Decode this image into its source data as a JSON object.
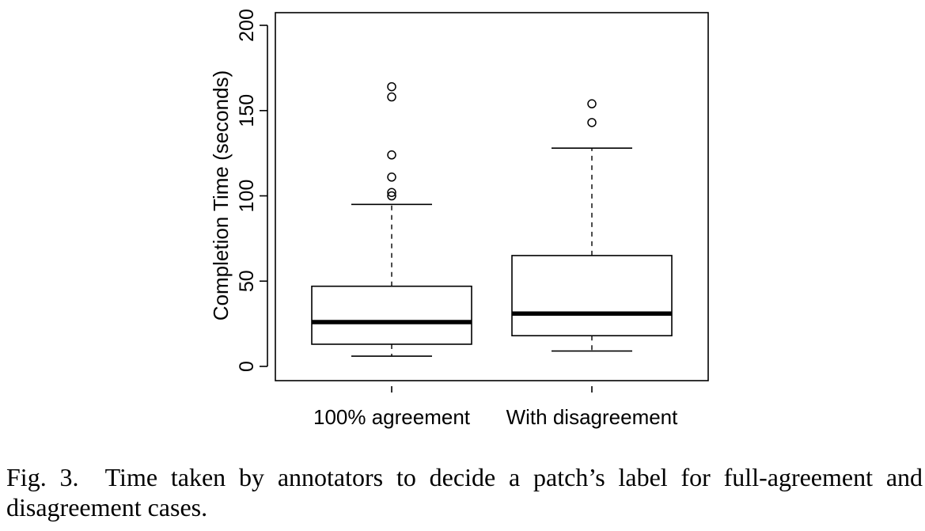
{
  "chart_data": {
    "type": "box",
    "ylabel": "Completion Time (seconds)",
    "xlabel": "",
    "ylim": [
      0,
      200
    ],
    "yticks": [
      0,
      50,
      100,
      150,
      200
    ],
    "categories": [
      "100% agreement",
      "With disagreement"
    ],
    "boxes": [
      {
        "label": "100% agreement",
        "whisker_low": 6,
        "q1": 13,
        "median": 26,
        "q3": 47,
        "whisker_high": 95,
        "outliers": [
          100,
          102,
          111,
          124,
          158,
          164
        ]
      },
      {
        "label": "With disagreement",
        "whisker_low": 9,
        "q1": 18,
        "median": 31,
        "q3": 65,
        "whisker_high": 128,
        "outliers": [
          143,
          154
        ]
      }
    ],
    "grid": false,
    "legend": "none"
  },
  "caption": {
    "label": "Fig. 3.",
    "text": "Time taken by annotators to decide a patch’s label for full-agreement and disagreement cases."
  }
}
